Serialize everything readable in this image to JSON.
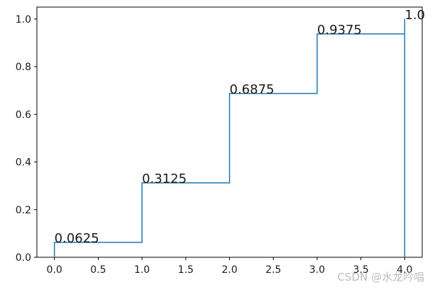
{
  "chart_data": {
    "type": "line",
    "style": "step-post",
    "x": [
      0,
      1,
      2,
      3,
      4
    ],
    "series": [
      {
        "values": [
          0.0625,
          0.3125,
          0.6875,
          0.9375,
          1.0
        ],
        "color": "#1f77b4"
      }
    ],
    "point_labels": [
      "0.0625",
      "0.3125",
      "0.6875",
      "0.9375",
      "1.0"
    ],
    "title": "",
    "xlabel": "",
    "ylabel": "",
    "xlim": [
      -0.2,
      4.2
    ],
    "ylim": [
      0.0,
      1.05
    ],
    "xticks": [
      0.0,
      0.5,
      1.0,
      1.5,
      2.0,
      2.5,
      3.0,
      3.5,
      4.0
    ],
    "xtick_labels": [
      "0.0",
      "0.5",
      "1.0",
      "1.5",
      "2.0",
      "2.5",
      "3.0",
      "3.5",
      "4.0"
    ],
    "yticks": [
      0.0,
      0.2,
      0.4,
      0.6,
      0.8,
      1.0
    ],
    "ytick_labels": [
      "0.0",
      "0.2",
      "0.4",
      "0.6",
      "0.8",
      "1.0"
    ],
    "grid": false,
    "legend": "none"
  },
  "watermark": {
    "text": "CSDN @水龙吟唱"
  }
}
